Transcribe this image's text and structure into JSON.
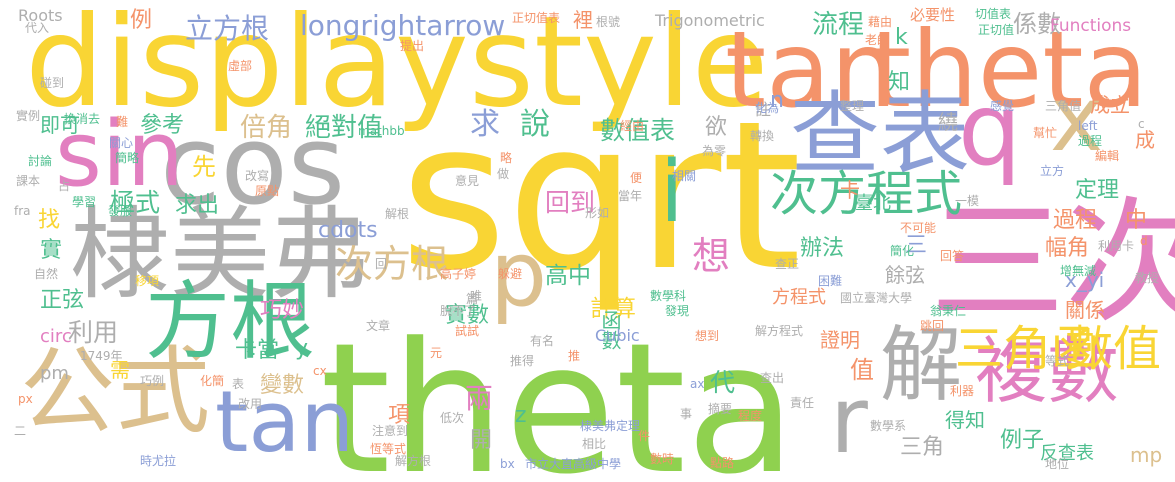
{
  "palette": {
    "yellow": "#f9d534",
    "green": "#8fd14f",
    "orange": "#f4936a",
    "gray": "#aeaeae",
    "teal": "#4fbf8f",
    "pink": "#e27fc0",
    "tan": "#dcc08e",
    "blue": "#8b9ed6"
  },
  "words": [
    {
      "text": "sqrt",
      "color": "yellow"
    },
    {
      "text": "theta",
      "color": "green"
    },
    {
      "text": "displaystyle",
      "color": "yellow"
    },
    {
      "text": "tan",
      "color": "orange"
    },
    {
      "text": "theta",
      "color": "orange"
    },
    {
      "text": "cos",
      "color": "gray"
    },
    {
      "text": "sin",
      "color": "pink"
    },
    {
      "text": "棣美弗",
      "color": "gray"
    },
    {
      "text": "三次",
      "color": "pink"
    },
    {
      "text": "查表",
      "color": "blue"
    },
    {
      "text": "公式",
      "color": "tan"
    },
    {
      "text": "方根",
      "color": "teal"
    },
    {
      "text": "tan",
      "color": "blue"
    },
    {
      "text": "複數",
      "color": "pink"
    },
    {
      "text": "解",
      "color": "gray"
    },
    {
      "text": "q",
      "color": "pink"
    },
    {
      "text": "x",
      "color": "tan"
    },
    {
      "text": "p",
      "color": "tan"
    },
    {
      "text": "r",
      "color": "gray"
    },
    {
      "text": "i",
      "color": "teal"
    },
    {
      "text": "次方程式",
      "color": "teal"
    },
    {
      "text": "次方根",
      "color": "tan"
    },
    {
      "text": "三角函",
      "color": "yellow"
    },
    {
      "text": "數值",
      "color": "yellow"
    },
    {
      "text": "立方根",
      "color": "blue"
    },
    {
      "text": "longrightarrow",
      "color": "blue"
    },
    {
      "text": "流程",
      "color": "teal"
    },
    {
      "text": "係數",
      "color": "gray"
    },
    {
      "text": "Functions",
      "color": "pink"
    },
    {
      "text": "Trigonometric",
      "color": "gray"
    },
    {
      "text": "Roots",
      "color": "gray"
    },
    {
      "text": "例",
      "color": "orange"
    },
    {
      "text": "倍角",
      "color": "tan"
    },
    {
      "text": "絕對值",
      "color": "teal"
    },
    {
      "text": "求",
      "color": "blue"
    },
    {
      "text": "說",
      "color": "teal"
    },
    {
      "text": "數值表",
      "color": "teal"
    },
    {
      "text": "參考",
      "color": "teal"
    },
    {
      "text": "極式",
      "color": "teal"
    },
    {
      "text": "先",
      "color": "yellow"
    },
    {
      "text": "求出",
      "color": "teal"
    },
    {
      "text": "cdots",
      "color": "blue"
    },
    {
      "text": "回到",
      "color": "pink"
    },
    {
      "text": "利用",
      "color": "gray"
    },
    {
      "text": "巧妙",
      "color": "pink"
    },
    {
      "text": "y",
      "color": "teal"
    },
    {
      "text": "想",
      "color": "pink"
    },
    {
      "text": "高中",
      "color": "teal"
    },
    {
      "text": "計算",
      "color": "yellow"
    },
    {
      "text": "函數",
      "color": "teal"
    },
    {
      "text": "實數",
      "color": "teal"
    },
    {
      "text": "卡當",
      "color": "teal"
    },
    {
      "text": "變數",
      "color": "tan"
    },
    {
      "text": "兩",
      "color": "pink"
    },
    {
      "text": "代",
      "color": "teal"
    },
    {
      "text": "z",
      "color": "teal"
    },
    {
      "text": "開",
      "color": "gray"
    },
    {
      "text": "項",
      "color": "orange"
    },
    {
      "text": "需",
      "color": "yellow"
    },
    {
      "text": "pm",
      "color": "gray"
    },
    {
      "text": "circ",
      "color": "pink"
    },
    {
      "text": "正弦",
      "color": "teal"
    },
    {
      "text": "實",
      "color": "teal"
    },
    {
      "text": "找",
      "color": "yellow"
    },
    {
      "text": "即可",
      "color": "teal"
    },
    {
      "text": "定理",
      "color": "teal"
    },
    {
      "text": "過程",
      "color": "orange"
    },
    {
      "text": "中",
      "color": "orange"
    },
    {
      "text": "幅角",
      "color": "orange"
    },
    {
      "text": "辦法",
      "color": "teal"
    },
    {
      "text": "三",
      "color": "blue"
    },
    {
      "text": "餘弦",
      "color": "gray"
    },
    {
      "text": "x_yi",
      "color": "blue"
    },
    {
      "text": "關係",
      "color": "orange"
    },
    {
      "text": "方程式",
      "color": "orange"
    },
    {
      "text": "證明",
      "color": "orange"
    },
    {
      "text": "值",
      "color": "orange"
    },
    {
      "text": "三角",
      "color": "gray"
    },
    {
      "text": "得知",
      "color": "teal"
    },
    {
      "text": "例子",
      "color": "teal"
    },
    {
      "text": "反查表",
      "color": "teal"
    },
    {
      "text": "mp",
      "color": "tan"
    },
    {
      "text": "成立",
      "color": "orange"
    },
    {
      "text": "知",
      "color": "teal"
    },
    {
      "text": "欲",
      "color": "gray"
    },
    {
      "text": "n",
      "color": "blue"
    },
    {
      "text": "k",
      "color": "teal"
    },
    {
      "text": "卡",
      "color": "orange"
    },
    {
      "text": "成",
      "color": "orange"
    },
    {
      "text": "繞",
      "color": "gray"
    },
    {
      "text": "註",
      "color": "gray"
    },
    {
      "text": "裡",
      "color": "orange"
    },
    {
      "text": "必要性",
      "color": "orange"
    },
    {
      "text": "正切值表",
      "color": "orange"
    },
    {
      "text": "切值表",
      "color": "teal"
    },
    {
      "text": "正切值",
      "color": "teal"
    },
    {
      "text": "根號",
      "color": "gray"
    },
    {
      "text": "藉由",
      "color": "orange"
    },
    {
      "text": "老師",
      "color": "orange"
    },
    {
      "text": "代入",
      "color": "gray"
    },
    {
      "text": "碰到",
      "color": "gray"
    },
    {
      "text": "提出",
      "color": "orange"
    },
    {
      "text": "虛部",
      "color": "orange"
    },
    {
      "text": "實例",
      "color": "gray"
    },
    {
      "text": "換消去",
      "color": "teal"
    },
    {
      "text": "難",
      "color": "orange"
    },
    {
      "text": "關心",
      "color": "blue"
    },
    {
      "text": "簡略",
      "color": "teal"
    },
    {
      "text": "討論",
      "color": "teal"
    },
    {
      "text": "課本",
      "color": "gray"
    },
    {
      "text": "占",
      "color": "gray"
    },
    {
      "text": "學習",
      "color": "teal"
    },
    {
      "text": "發服",
      "color": "teal"
    },
    {
      "text": "fra",
      "color": "gray"
    },
    {
      "text": "自然",
      "color": "gray"
    },
    {
      "text": "移項",
      "color": "yellow"
    },
    {
      "text": "1749年",
      "color": "gray"
    },
    {
      "text": "巧例",
      "color": "gray"
    },
    {
      "text": "px",
      "color": "orange"
    },
    {
      "text": "二",
      "color": "gray"
    },
    {
      "text": "化簡",
      "color": "orange"
    },
    {
      "text": "表",
      "color": "gray"
    },
    {
      "text": "改用",
      "color": "gray"
    },
    {
      "text": "注意到",
      "color": "gray"
    },
    {
      "text": "恆等式",
      "color": "orange"
    },
    {
      "text": "時尤拉",
      "color": "blue"
    },
    {
      "text": "低次",
      "color": "gray"
    },
    {
      "text": "解方根",
      "color": "gray"
    },
    {
      "text": "棣美弗定理",
      "color": "blue"
    },
    {
      "text": "相比",
      "color": "gray"
    },
    {
      "text": "摘要",
      "color": "gray"
    },
    {
      "text": "程度",
      "color": "orange"
    },
    {
      "text": "責任",
      "color": "gray"
    },
    {
      "text": "數學系",
      "color": "gray"
    },
    {
      "text": "利器",
      "color": "orange"
    },
    {
      "text": "地位",
      "color": "gray"
    },
    {
      "text": "點路",
      "color": "orange"
    },
    {
      "text": "市立大直高級中學",
      "color": "blue"
    },
    {
      "text": "數時",
      "color": "orange"
    },
    {
      "text": "bx",
      "color": "blue"
    },
    {
      "text": "件",
      "color": "orange"
    },
    {
      "text": "ax",
      "color": "blue"
    },
    {
      "text": "事",
      "color": "gray"
    },
    {
      "text": "查出",
      "color": "gray"
    },
    {
      "text": "推得",
      "color": "gray"
    },
    {
      "text": "元",
      "color": "orange"
    },
    {
      "text": "cx",
      "color": "orange"
    },
    {
      "text": "文章",
      "color": "gray"
    },
    {
      "text": "有名",
      "color": "gray"
    },
    {
      "text": "推",
      "color": "orange"
    },
    {
      "text": "想到",
      "color": "orange"
    },
    {
      "text": "解方程式",
      "color": "gray"
    },
    {
      "text": "試試",
      "color": "orange"
    },
    {
      "text": "Cubic",
      "color": "blue"
    },
    {
      "text": "數學科",
      "color": "teal"
    },
    {
      "text": "發現",
      "color": "teal"
    },
    {
      "text": "國立臺灣大學",
      "color": "gray"
    },
    {
      "text": "翁秉仁",
      "color": "teal"
    },
    {
      "text": "跳回",
      "color": "orange"
    },
    {
      "text": "等式",
      "color": "gray"
    },
    {
      "text": "教授",
      "color": "gray"
    },
    {
      "text": "增無減",
      "color": "teal"
    },
    {
      "text": "困難",
      "color": "blue"
    },
    {
      "text": "查正",
      "color": "gray"
    },
    {
      "text": "簡化",
      "color": "teal"
    },
    {
      "text": "回答",
      "color": "orange"
    },
    {
      "text": "不可能",
      "color": "orange"
    },
    {
      "text": "利用卡",
      "color": "gray"
    },
    {
      "text": "臺北",
      "color": "teal"
    },
    {
      "text": "一模",
      "color": "gray"
    },
    {
      "text": "當年",
      "color": "gray"
    },
    {
      "text": "形如",
      "color": "gray"
    },
    {
      "text": "便",
      "color": "orange"
    },
    {
      "text": "相關",
      "color": "blue"
    },
    {
      "text": "轉換",
      "color": "gray"
    },
    {
      "text": "化為",
      "color": "blue"
    },
    {
      "text": "為零",
      "color": "gray"
    },
    {
      "text": "整理",
      "color": "gray"
    },
    {
      "text": "感覺",
      "color": "blue"
    },
    {
      "text": "幫忙",
      "color": "orange"
    },
    {
      "text": "三角值",
      "color": "gray"
    },
    {
      "text": "left",
      "color": "blue"
    },
    {
      "text": "過程",
      "color": "teal"
    },
    {
      "text": "編輯",
      "color": "orange"
    },
    {
      "text": "立方",
      "color": "blue"
    },
    {
      "text": "c",
      "color": "gray"
    },
    {
      "text": "d",
      "color": "orange"
    },
    {
      "text": "mathbb",
      "color": "teal"
    },
    {
      "text": "略",
      "color": "orange"
    },
    {
      "text": "做",
      "color": "gray"
    },
    {
      "text": "意見",
      "color": "gray"
    },
    {
      "text": "原點",
      "color": "orange"
    },
    {
      "text": "改寫",
      "color": "gray"
    },
    {
      "text": "解根",
      "color": "gray"
    },
    {
      "text": "高子婷",
      "color": "orange"
    },
    {
      "text": "躲避",
      "color": "orange"
    },
    {
      "text": "唯",
      "color": "gray"
    },
    {
      "text": "脫不了",
      "color": "gray"
    },
    {
      "text": "篇",
      "color": "gray"
    },
    {
      "text": "回",
      "color": "gray"
    },
    {
      "text": "經由",
      "color": "orange"
    }
  ]
}
